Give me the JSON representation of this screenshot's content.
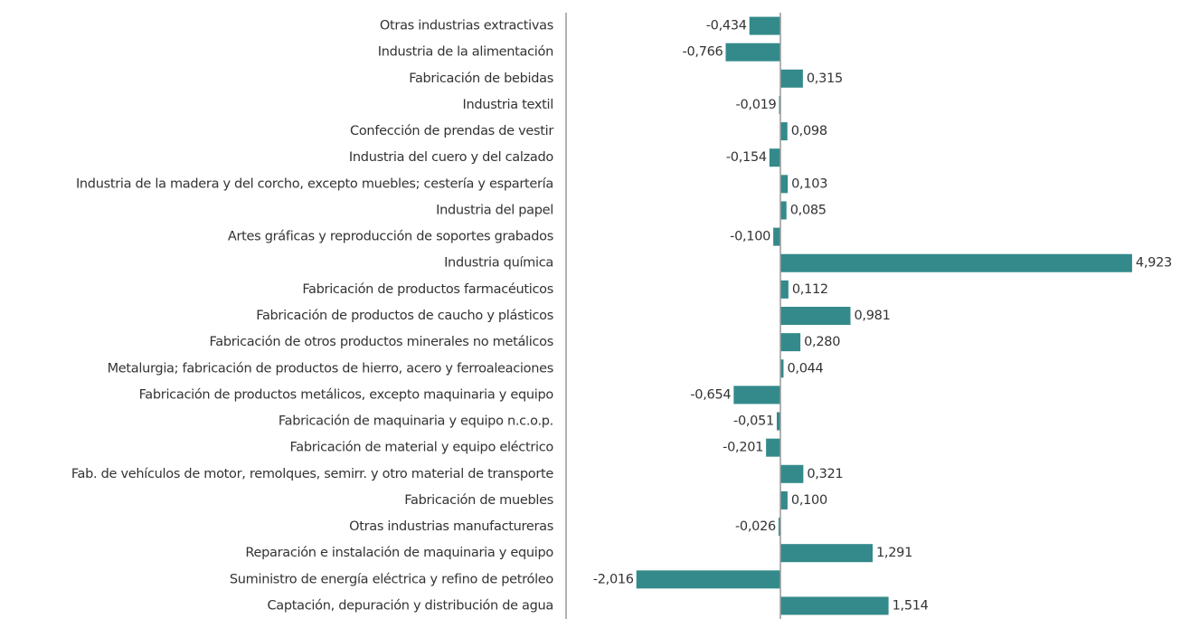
{
  "chart_data": {
    "type": "bar",
    "orientation": "horizontal",
    "color": "#348a8a",
    "categories": [
      "Otras industrias extractivas",
      "Industria de la alimentación",
      "Fabricación de bebidas",
      "Industria textil",
      "Confección de prendas de vestir",
      "Industria del cuero y del calzado",
      "Industria de la madera y del corcho, excepto muebles; cestería y espartería",
      "Industria del papel",
      "Artes gráficas y reproducción de soportes grabados",
      "Industria química",
      "Fabricación de productos farmacéuticos",
      "Fabricación de productos de caucho y plásticos",
      "Fabricación de otros productos minerales no metálicos",
      "Metalurgia; fabricación de productos de hierro, acero y ferroaleaciones",
      "Fabricación de productos metálicos, excepto maquinaria y equipo",
      "Fabricación de maquinaria y equipo n.c.o.p.",
      "Fabricación de material y equipo eléctrico",
      "Fab. de vehículos de motor, remolques, semirr. y otro material de transporte",
      "Fabricación de muebles",
      "Otras industrias manufactureras",
      "Reparación e instalación de maquinaria y equipo",
      "Suministro de energía eléctrica y refino de petróleo",
      "Captación, depuración y distribución de agua"
    ],
    "values": [
      -0.434,
      -0.766,
      0.315,
      -0.019,
      0.098,
      -0.154,
      0.103,
      0.085,
      -0.1,
      4.923,
      0.112,
      0.981,
      0.28,
      0.044,
      -0.654,
      -0.051,
      -0.201,
      0.321,
      0.1,
      -0.026,
      1.291,
      -2.016,
      1.514
    ],
    "value_labels": [
      "-0,434",
      "-0,766",
      "0,315",
      "-0,019",
      "0,098",
      "-0,154",
      "0,103",
      "0,085",
      "-0,100",
      "4,923",
      "0,112",
      "0,981",
      "0,280",
      "0,044",
      "-0,654",
      "-0,051",
      "-0,201",
      "0,321",
      "0,100",
      "-0,026",
      "1,291",
      "-2,016",
      "1,514"
    ],
    "xlim": [
      -3,
      5
    ]
  }
}
